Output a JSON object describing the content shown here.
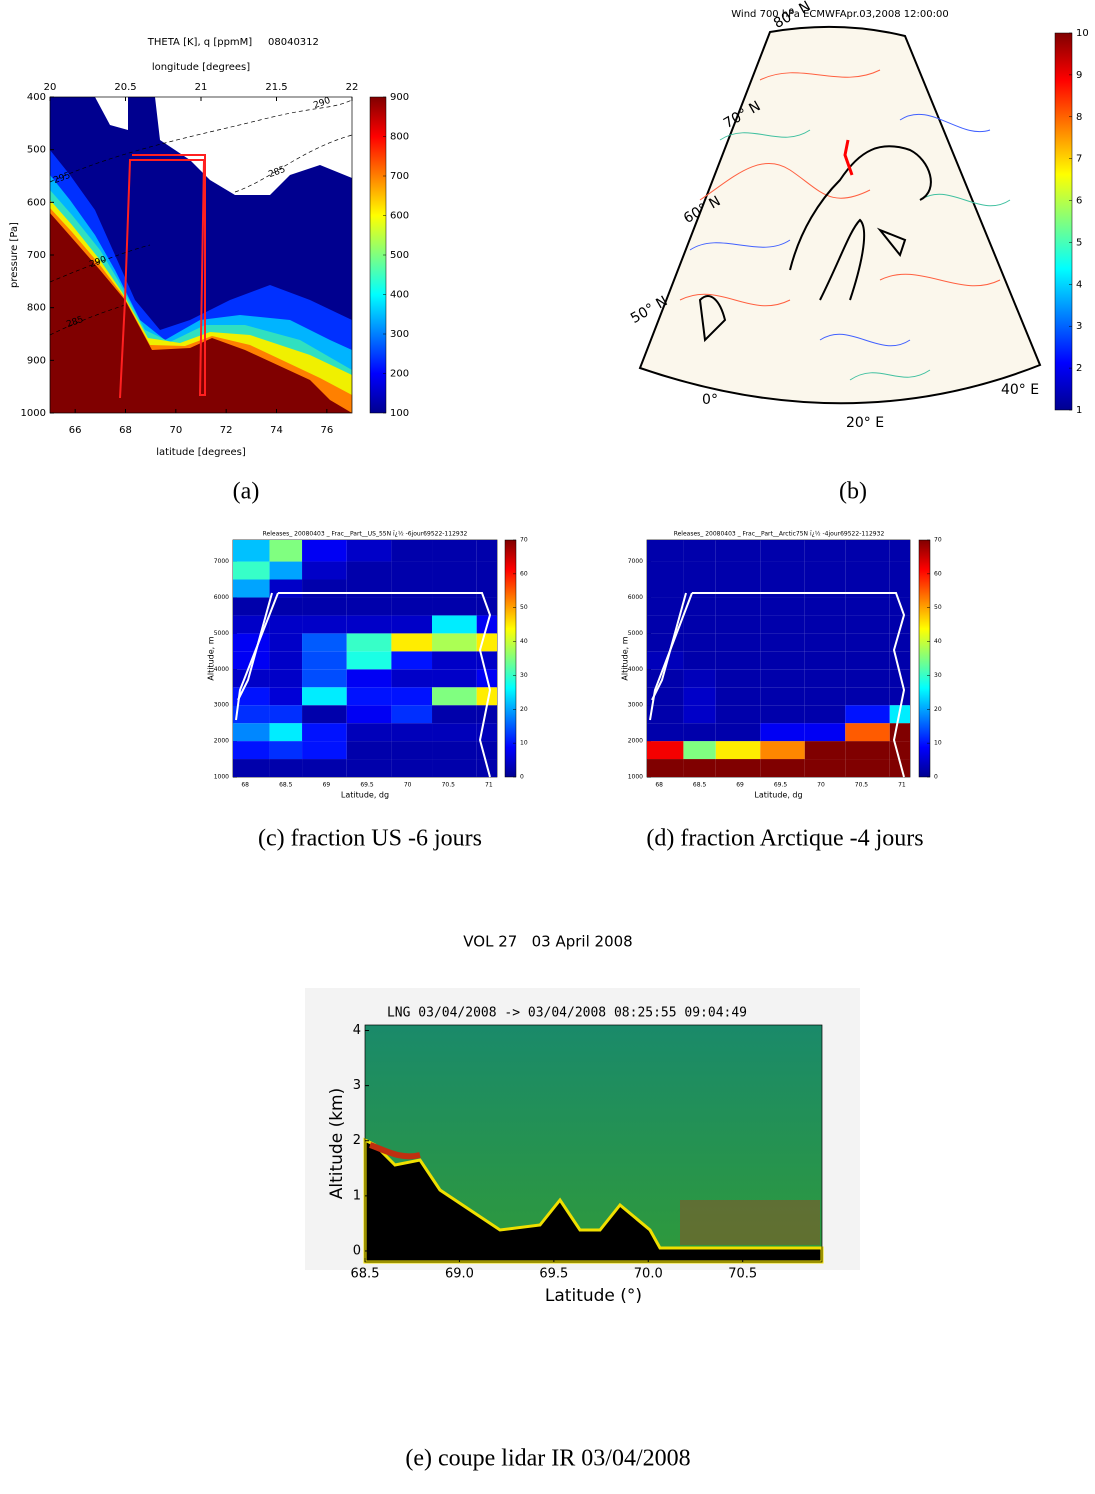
{
  "chart_data": [
    {
      "type": "contour",
      "title": "THETA [K], q [ppmM]",
      "title_right": "08040312",
      "x2label": "longitude [degrees]",
      "x2lim": [
        20,
        22
      ],
      "x2ticks": [
        20,
        20.5,
        21,
        21.5,
        22
      ],
      "xlabel": "latitude [degrees]",
      "xlim": [
        65,
        77
      ],
      "xticks": [
        66,
        68,
        70,
        72,
        74,
        76
      ],
      "ylabel": "pressure [Pa]",
      "ylim": [
        400,
        1000
      ],
      "yticks": [
        400,
        500,
        600,
        700,
        800,
        900,
        1000
      ],
      "y_inverted": true,
      "contour_labels": [
        290,
        285,
        295,
        290,
        285
      ],
      "colorbar": {
        "lim": [
          100,
          900
        ],
        "ticks": [
          100,
          200,
          300,
          400,
          500,
          600,
          700,
          800,
          900
        ],
        "colormap": "jet"
      }
    },
    {
      "type": "map",
      "title": "Wind 700 hPa ECMWFApr.03,2008 12:00:00",
      "lat_labels": [
        "80° N",
        "70° N",
        "60° N",
        "50° N"
      ],
      "lon_labels": [
        "0°",
        "20° E",
        "40° E"
      ],
      "colorbar": {
        "lim": [
          1,
          10
        ],
        "ticks": [
          1,
          2,
          3,
          4,
          5,
          6,
          7,
          8,
          9,
          10
        ],
        "colormap": "jet"
      }
    },
    {
      "type": "heatmap",
      "title": "Releases_ 20080403 _ Frac__Part__US_55N ï¿½ -6jour69522-112932",
      "xlabel": "Latitude, dg",
      "ylabel": "Altitude, m",
      "xlim": [
        67.85,
        71.1
      ],
      "xticks": [
        68,
        68.5,
        69,
        69.5,
        70,
        70.5,
        71
      ],
      "ylim": [
        1000,
        7600
      ],
      "yticks": [
        1000,
        2000,
        3000,
        4000,
        5000,
        6000,
        7000
      ],
      "xbins": [
        67.85,
        68.3,
        68.7,
        69.25,
        69.8,
        70.3,
        70.85,
        71.1
      ],
      "ybins": [
        1000,
        1500,
        2000,
        2500,
        3000,
        3500,
        4000,
        4500,
        5000,
        5500,
        6000,
        6500,
        7000,
        7600
      ],
      "values": [
        [
          3,
          3,
          3,
          3,
          3,
          3,
          3
        ],
        [
          10,
          12,
          10,
          3,
          3,
          3,
          3
        ],
        [
          18,
          25,
          10,
          4,
          4,
          4,
          4
        ],
        [
          12,
          12,
          3,
          8,
          12,
          3,
          3
        ],
        [
          10,
          6,
          25,
          10,
          10,
          35,
          45
        ],
        [
          5,
          5,
          14,
          8,
          5,
          5,
          8
        ],
        [
          8,
          5,
          14,
          28,
          10,
          5,
          5
        ],
        [
          8,
          5,
          15,
          30,
          45,
          38,
          45
        ],
        [
          5,
          5,
          5,
          5,
          5,
          25,
          8
        ],
        [
          3,
          3,
          3,
          3,
          3,
          3,
          3
        ],
        [
          20,
          5,
          3,
          3,
          3,
          3,
          3
        ],
        [
          30,
          20,
          5,
          3,
          3,
          3,
          3
        ],
        [
          22,
          35,
          8,
          5,
          3,
          3,
          3
        ]
      ],
      "colorbar": {
        "lim": [
          0,
          70
        ],
        "ticks": [
          0,
          10,
          20,
          30,
          40,
          50,
          60,
          70
        ],
        "colormap": "jet"
      }
    },
    {
      "type": "heatmap",
      "title": "Releases_ 20080403 _ Frac__Part__Arctic75N ï¿½ -4jour69522-112932",
      "xlabel": "Latitude, dg",
      "ylabel": "Altitude, m",
      "xlim": [
        67.85,
        71.1
      ],
      "xticks": [
        68,
        68.5,
        69,
        69.5,
        70,
        70.5,
        71
      ],
      "ylim": [
        1000,
        7600
      ],
      "yticks": [
        1000,
        2000,
        3000,
        4000,
        5000,
        6000,
        7000
      ],
      "xbins": [
        67.85,
        68.3,
        68.7,
        69.25,
        69.8,
        70.3,
        70.85,
        71.1
      ],
      "ybins": [
        1000,
        1500,
        2000,
        2500,
        3000,
        3500,
        4000,
        4500,
        5000,
        5500,
        6000,
        6500,
        7000,
        7600
      ],
      "values": [
        [
          70,
          70,
          70,
          70,
          70,
          70,
          70
        ],
        [
          62,
          35,
          45,
          52,
          70,
          70,
          70
        ],
        [
          3,
          3,
          3,
          8,
          8,
          55,
          70
        ],
        [
          3,
          5,
          3,
          3,
          3,
          10,
          25
        ],
        [
          3,
          5,
          3,
          3,
          3,
          3,
          3
        ],
        [
          3,
          4,
          3,
          3,
          3,
          3,
          3
        ],
        [
          4,
          3,
          3,
          3,
          3,
          3,
          3
        ],
        [
          3,
          3,
          3,
          3,
          3,
          3,
          3
        ],
        [
          3,
          3,
          3,
          3,
          3,
          3,
          3
        ],
        [
          3,
          3,
          3,
          3,
          3,
          3,
          3
        ],
        [
          3,
          3,
          3,
          3,
          3,
          3,
          3
        ],
        [
          3,
          3,
          3,
          3,
          3,
          3,
          3
        ],
        [
          3,
          3,
          3,
          3,
          3,
          3,
          3
        ]
      ],
      "colorbar": {
        "lim": [
          0,
          70
        ],
        "ticks": [
          0,
          10,
          20,
          30,
          40,
          50,
          60,
          70
        ],
        "colormap": "jet"
      }
    },
    {
      "type": "lidar",
      "title": "VOL 27   03 April 2008",
      "subtitle": "LNG 03/04/2008 -> 03/04/2008 08:25:55 09:04:49",
      "xlabel": "Latitude (°)",
      "ylabel": "Altitude (km)",
      "xlim": [
        68.5,
        70.92
      ],
      "xticks": [
        68.5,
        {
          "value": 69,
          "label": "69.0"
        },
        69.5,
        {
          "value": 70,
          "label": "70.0"
        },
        70.5
      ],
      "ylim": [
        -0.2,
        4.1
      ],
      "yticks": [
        0,
        1,
        2,
        3,
        4
      ]
    }
  ],
  "captions": [
    "(a)",
    "(b)",
    "(c) fraction US -6 jours",
    "(d) fraction Arctique -4 jours",
    "(e) coupe lidar IR 03/04/2008"
  ]
}
